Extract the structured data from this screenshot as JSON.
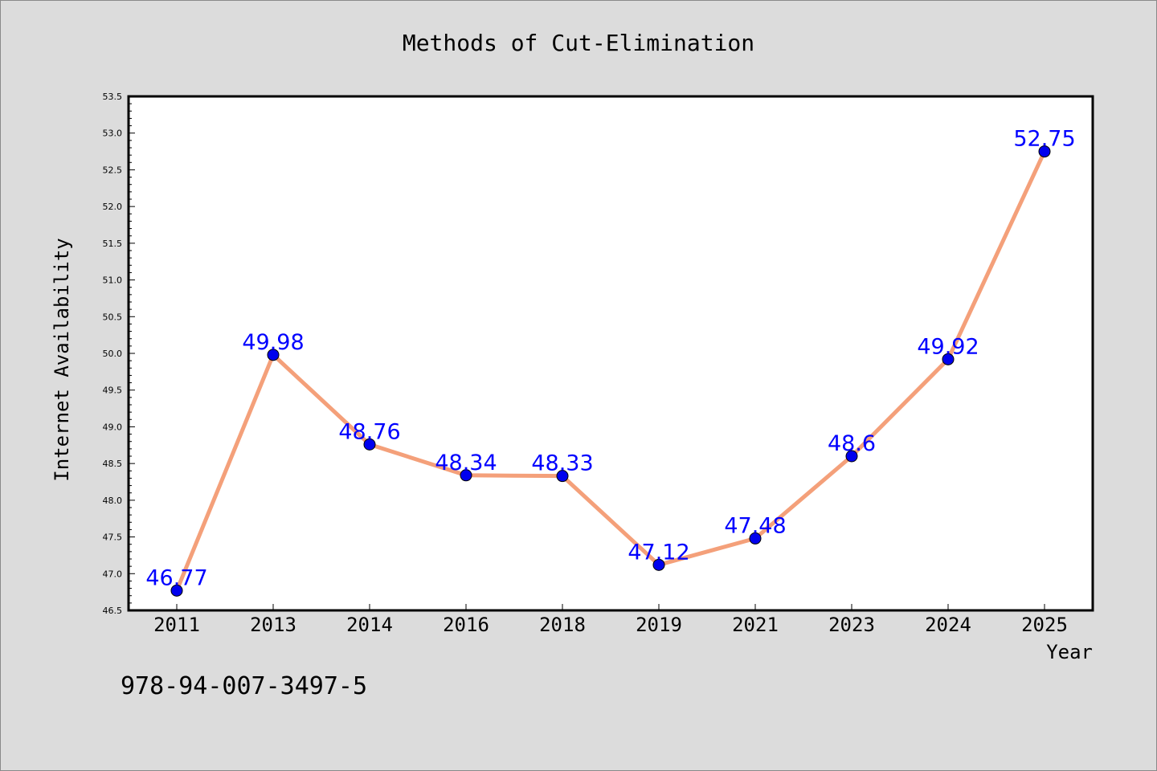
{
  "chart_data": {
    "type": "line",
    "title": "Methods of Cut-Elimination",
    "xlabel": "Year",
    "ylabel": "Internet Availability",
    "categories": [
      "2011",
      "2013",
      "2014",
      "2016",
      "2018",
      "2019",
      "2021",
      "2023",
      "2024",
      "2025"
    ],
    "series": [
      {
        "values": [
          46.77,
          49.98,
          48.76,
          48.34,
          48.33,
          47.12,
          47.48,
          48.6,
          49.92,
          52.75
        ],
        "labels": [
          "46.77",
          "49.98",
          "48.76",
          "48.34",
          "48.33",
          "47.12",
          "47.48",
          "48.6",
          "49.92",
          "52.75"
        ]
      }
    ],
    "ylim": [
      46.5,
      53.5
    ],
    "yticks": [
      "46.5",
      "47.0",
      "47.5",
      "48.0",
      "48.5",
      "49.0",
      "49.5",
      "50.0",
      "50.5",
      "51.0",
      "51.5",
      "52.0",
      "52.5",
      "53.0",
      "53.5"
    ],
    "grid": false,
    "legend": "none",
    "colors": {
      "line": "#f4a07a",
      "marker": "#0000ee",
      "data_label": "#0000ff",
      "background": "#dcdcdc",
      "plot_area": "#ffffff"
    }
  },
  "footer": {
    "isbn": "978-94-007-3497-5"
  }
}
